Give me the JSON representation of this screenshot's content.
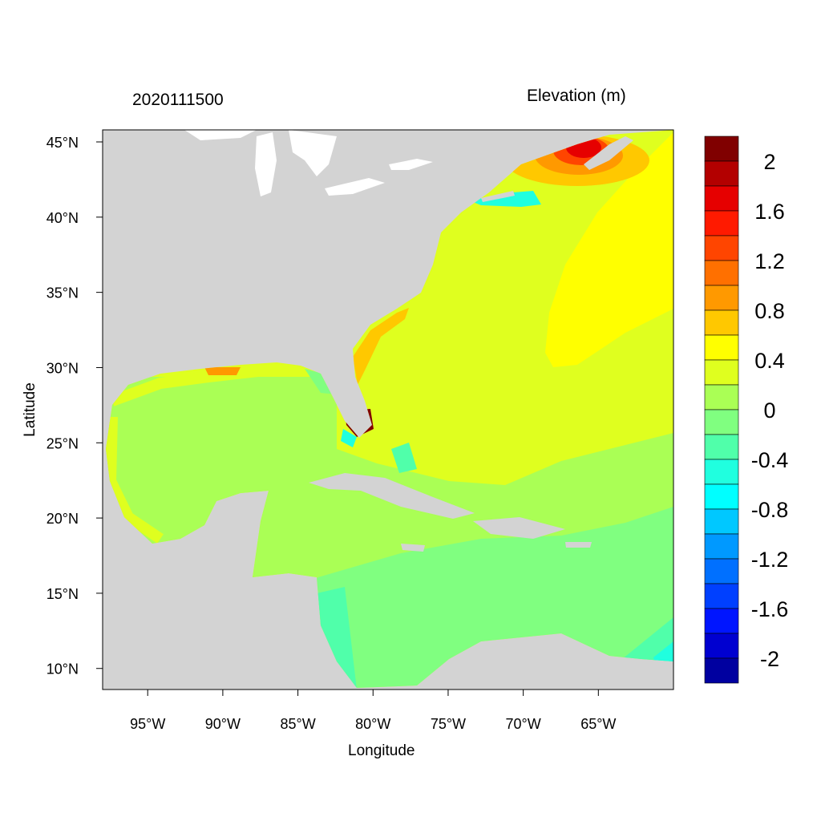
{
  "title_left": "2020111500",
  "title_right": "Elevation (m)",
  "x_axis": {
    "label": "Longitude",
    "ticks": [
      "95°W",
      "90°W",
      "85°W",
      "80°W",
      "75°W",
      "70°W",
      "65°W"
    ],
    "tick_values": [
      -95,
      -90,
      -85,
      -80,
      -75,
      -70,
      -65
    ],
    "range": [
      -98,
      -60
    ]
  },
  "y_axis": {
    "label": "Latitude",
    "ticks": [
      "45°N",
      "40°N",
      "35°N",
      "30°N",
      "25°N",
      "20°N",
      "15°N",
      "10°N"
    ],
    "tick_values": [
      45,
      40,
      35,
      30,
      25,
      20,
      15,
      10
    ],
    "range": [
      8.6,
      45.8
    ]
  },
  "colorbar": {
    "labels": [
      "2",
      "1.6",
      "1.2",
      "0.8",
      "0.4",
      "0",
      "-0.4",
      "-0.8",
      "-1.2",
      "-1.6",
      "-2"
    ],
    "label_values": [
      2,
      1.6,
      1.2,
      0.8,
      0.4,
      0,
      -0.4,
      -0.8,
      -1.2,
      -1.6,
      -2
    ],
    "colors": [
      "#800000",
      "#B30000",
      "#E60000",
      "#FF1A00",
      "#FF4500",
      "#FF7000",
      "#FF9900",
      "#FFC800",
      "#FFFF00",
      "#DFFF1F",
      "#AAFF55",
      "#80FF80",
      "#50FFAA",
      "#20FFDF",
      "#00FFFF",
      "#00C8FF",
      "#0099FF",
      "#0070FF",
      "#0040FF",
      "#0015FF",
      "#0000D0",
      "#0000A0"
    ]
  },
  "colors": {
    "land": "#D3D3D3",
    "lakes": "#FFFFFF"
  }
}
